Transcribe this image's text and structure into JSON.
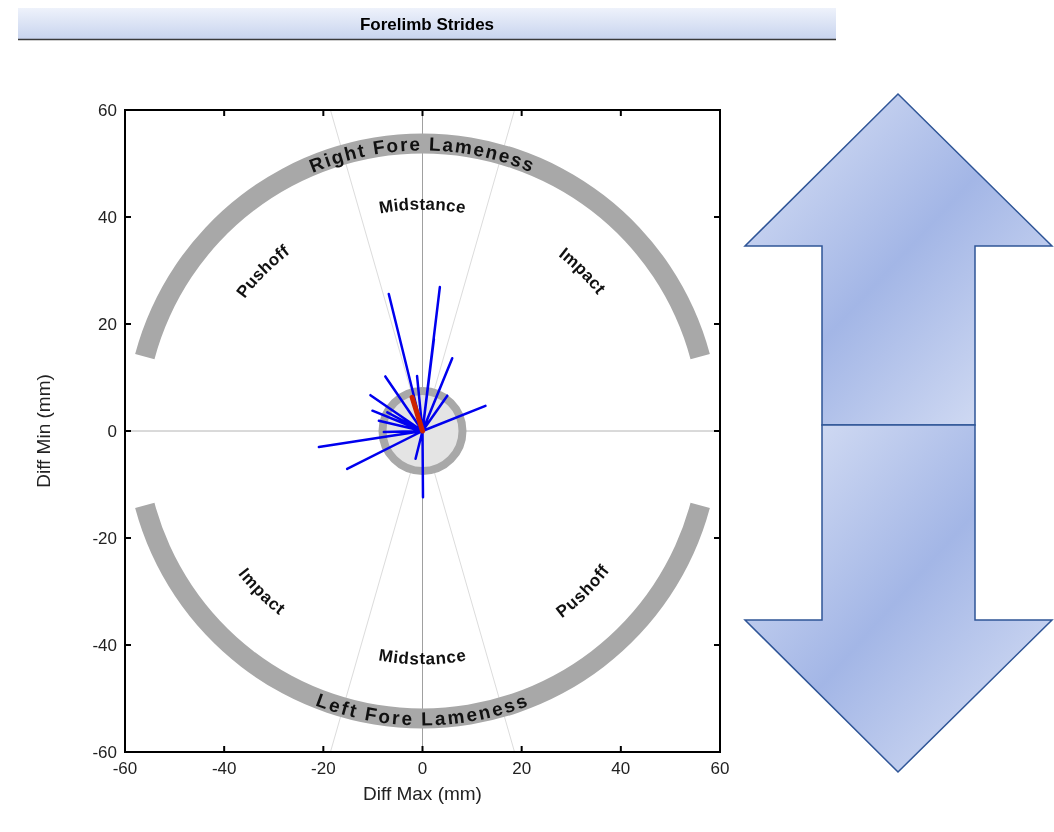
{
  "chart_data": {
    "type": "line",
    "title": "Forelimb Strides",
    "xlabel": "Diff Max (mm)",
    "ylabel": "Diff Min (mm)",
    "xlim": [
      -60,
      60
    ],
    "ylim": [
      -60,
      60
    ],
    "xticks": [
      -60,
      -40,
      -20,
      0,
      20,
      40,
      60
    ],
    "yticks": [
      -60,
      -40,
      -20,
      0,
      20,
      40,
      60
    ],
    "grid": false,
    "marker": "none",
    "ref_lines": [
      {
        "axis": "x",
        "value": 0,
        "color": "#a0a0a0"
      },
      {
        "axis": "y",
        "value": 0,
        "color": "#b4b4b4"
      }
    ],
    "annotations": [
      "Right Fore Lameness",
      "Midstance",
      "Pushoff",
      "Impact",
      "Left Fore Lameness",
      "Midstance",
      "Impact",
      "Pushoff"
    ],
    "series": [
      {
        "color": "#0000ee",
        "x": [
          0,
          -6.8,
          0,
          3.5,
          0,
          6.0,
          0,
          12.7,
          0,
          -7.5,
          0,
          -10.5,
          0,
          -10.1,
          0,
          -20.9,
          0,
          -15.2,
          0,
          0.1,
          0,
          -1.4,
          0,
          2.3,
          0,
          -1.1,
          0,
          5.0,
          0,
          -7.8,
          0,
          -8.8,
          0,
          -7.1
        ],
        "values": [
          0,
          25.6,
          0,
          26.9,
          0,
          13.6,
          0,
          4.7,
          0,
          10.2,
          0,
          6.7,
          0,
          3.8,
          0,
          -3.0,
          0,
          -7.1,
          0,
          -12.4,
          0,
          -5.2,
          0,
          17.2,
          0,
          10.3,
          0,
          6.6,
          0,
          -0.2,
          0,
          1.9,
          0,
          3.5
        ]
      },
      {
        "color": "#cc2200",
        "x": [
          0,
          -2.1
        ],
        "values": [
          0,
          6.3
        ]
      }
    ]
  }
}
